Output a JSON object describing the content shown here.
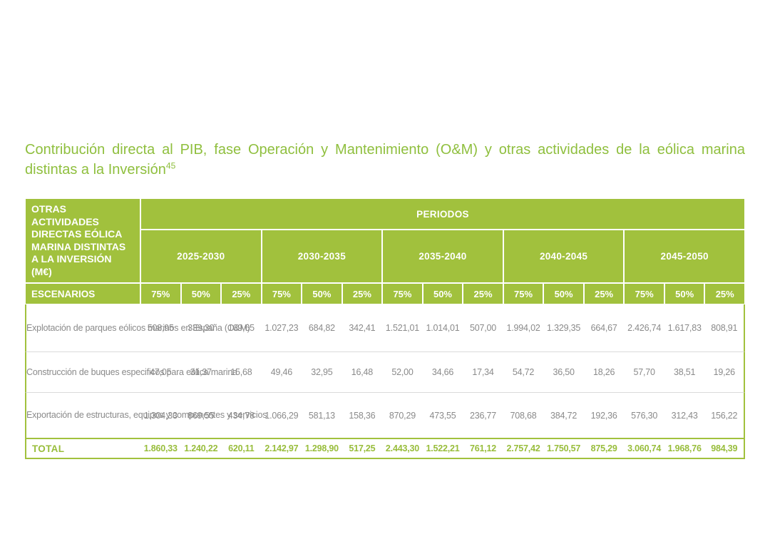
{
  "title": {
    "text": "Contribución directa al PIB, fase Operación y Mantenimiento (O&M) y otras actividades de la eólica marina distintas a la Inversión",
    "footnote_ref": "45"
  },
  "table": {
    "corner_header": "OTRAS ACTIVIDADES DIRECTAS EÓLICA MARINA DISTINTAS A LA INVERSIÓN (M€)",
    "periods_header": "PERIODOS",
    "periods": [
      "2025-2030",
      "2030-2035",
      "2035-2040",
      "2040-2045",
      "2045-2050"
    ],
    "scenarios_label": "ESCENARIOS",
    "scenario_percents": [
      "75%",
      "50%",
      "25%"
    ],
    "rows": [
      {
        "label": "Explotación de parques eólicos marinos en España (O&M)",
        "values": [
          "508,95",
          "339,30",
          "169,65",
          "1.027,23",
          "684,82",
          "342,41",
          "1.521,01",
          "1.014,01",
          "507,00",
          "1.994,02",
          "1.329,35",
          "664,67",
          "2.426,74",
          "1.617,83",
          "808,91"
        ]
      },
      {
        "label": "Construcción de buques especificos para eólica marina",
        "values": [
          "47,05",
          "31,37",
          "15,68",
          "49,46",
          "32,95",
          "16,48",
          "52,00",
          "34,66",
          "17,34",
          "54,72",
          "36,50",
          "18,26",
          "57,70",
          "38,51",
          "19,26"
        ]
      },
      {
        "label": "Exportación de estructuras, equipos y componentes y servicios",
        "values": [
          "1.304,33",
          "869,55",
          "434,78",
          "1.066,29",
          "581,13",
          "158,36",
          "870,29",
          "473,55",
          "236,77",
          "708,68",
          "384,72",
          "192,36",
          "576,30",
          "312,43",
          "156,22"
        ]
      }
    ],
    "total": {
      "label": "TOTAL",
      "values": [
        "1.860,33",
        "1.240,22",
        "620,11",
        "2.142,97",
        "1.298,90",
        "517,25",
        "2.443,30",
        "1.522,21",
        "761,12",
        "2.757,42",
        "1.750,57",
        "875,29",
        "3.060,74",
        "1.968,76",
        "984,39"
      ]
    }
  },
  "chart_data": {
    "type": "table",
    "title": "Contribución directa al PIB, fase Operación y Mantenimiento (O&M) y otras actividades de la eólica marina distintas a la Inversión (M€)",
    "column_groups": [
      "2025-2030",
      "2030-2035",
      "2035-2040",
      "2040-2045",
      "2045-2050"
    ],
    "scenarios_per_group": [
      "75%",
      "50%",
      "25%"
    ],
    "series": [
      {
        "name": "Explotación de parques eólicos marinos en España (O&M)",
        "values": [
          508.95,
          339.3,
          169.65,
          1027.23,
          684.82,
          342.41,
          1521.01,
          1014.01,
          507.0,
          1994.02,
          1329.35,
          664.67,
          2426.74,
          1617.83,
          808.91
        ]
      },
      {
        "name": "Construcción de buques especificos para eólica marina",
        "values": [
          47.05,
          31.37,
          15.68,
          49.46,
          32.95,
          16.48,
          52.0,
          34.66,
          17.34,
          54.72,
          36.5,
          18.26,
          57.7,
          38.51,
          19.26
        ]
      },
      {
        "name": "Exportación de estructuras, equipos y componentes y servicios",
        "values": [
          1304.33,
          869.55,
          434.78,
          1066.29,
          581.13,
          158.36,
          870.29,
          473.55,
          236.77,
          708.68,
          384.72,
          192.36,
          576.3,
          312.43,
          156.22
        ]
      },
      {
        "name": "TOTAL",
        "values": [
          1860.33,
          1240.22,
          620.11,
          2142.97,
          1298.9,
          517.25,
          2443.3,
          1522.21,
          761.12,
          2757.42,
          1750.57,
          875.29,
          3060.74,
          1968.76,
          984.39
        ]
      }
    ]
  },
  "colors": {
    "accent_green": "#A1C13D",
    "title_green": "#8FBF3E",
    "total_text_green": "#98BD3B",
    "header_text": "#FFFFFF",
    "body_text_gray": "#8A8A8A",
    "row_separator_gray": "#DBDBDB",
    "page_background": "#FFFFFF"
  }
}
